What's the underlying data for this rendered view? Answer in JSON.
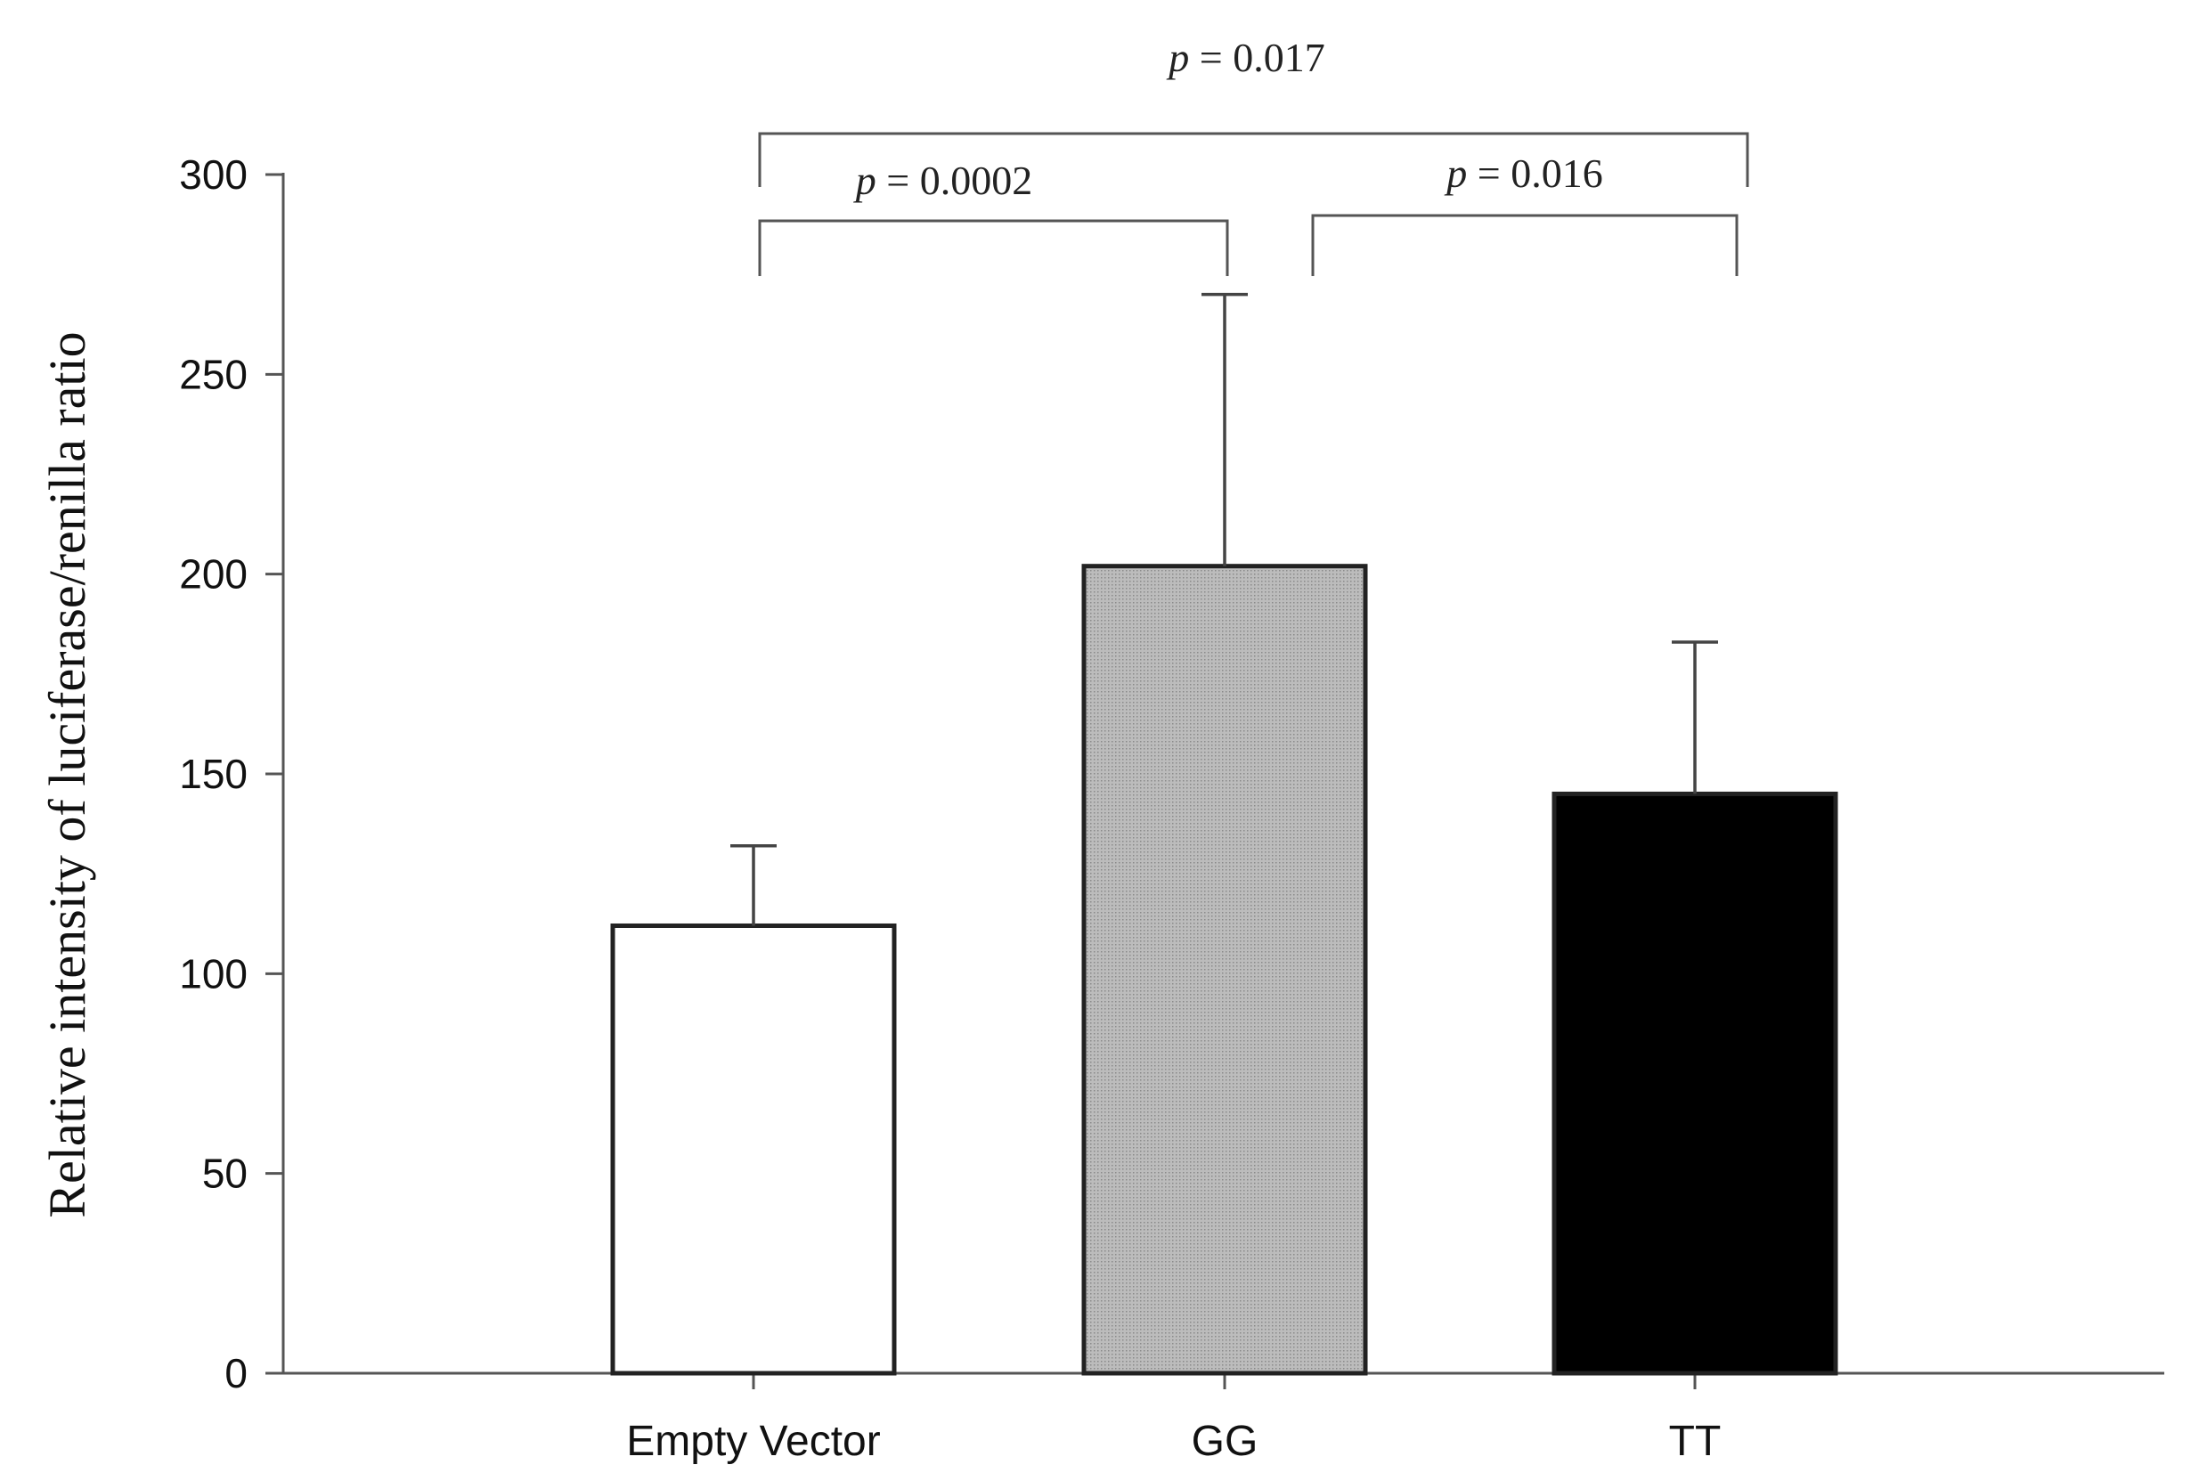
{
  "chart_data": {
    "type": "bar",
    "title": "",
    "xlabel": "",
    "ylabel": "Relative intensity of luciferase/renilla ratio",
    "ylim": [
      0,
      300
    ],
    "yticks": [
      0,
      50,
      100,
      150,
      200,
      250,
      300
    ],
    "categories": [
      "Empty Vector",
      "GG",
      "TT"
    ],
    "values": [
      112,
      202,
      145
    ],
    "errors": [
      20,
      68,
      38
    ],
    "bar_colors": [
      "#ffffff",
      "#bcbcbc",
      "#000000"
    ],
    "grid": false,
    "legend": "none",
    "significance": [
      {
        "from": 0,
        "to": 1,
        "label": "p = 0.0002",
        "italic_symbol": "p",
        "text": " = 0.0002"
      },
      {
        "from": 1,
        "to": 2,
        "label": "p = 0.016",
        "italic_symbol": "p",
        "text": " = 0.016"
      },
      {
        "from": 0,
        "to": 2,
        "label": "p = 0.017",
        "italic_symbol": "p",
        "text": " = 0.017"
      }
    ]
  }
}
